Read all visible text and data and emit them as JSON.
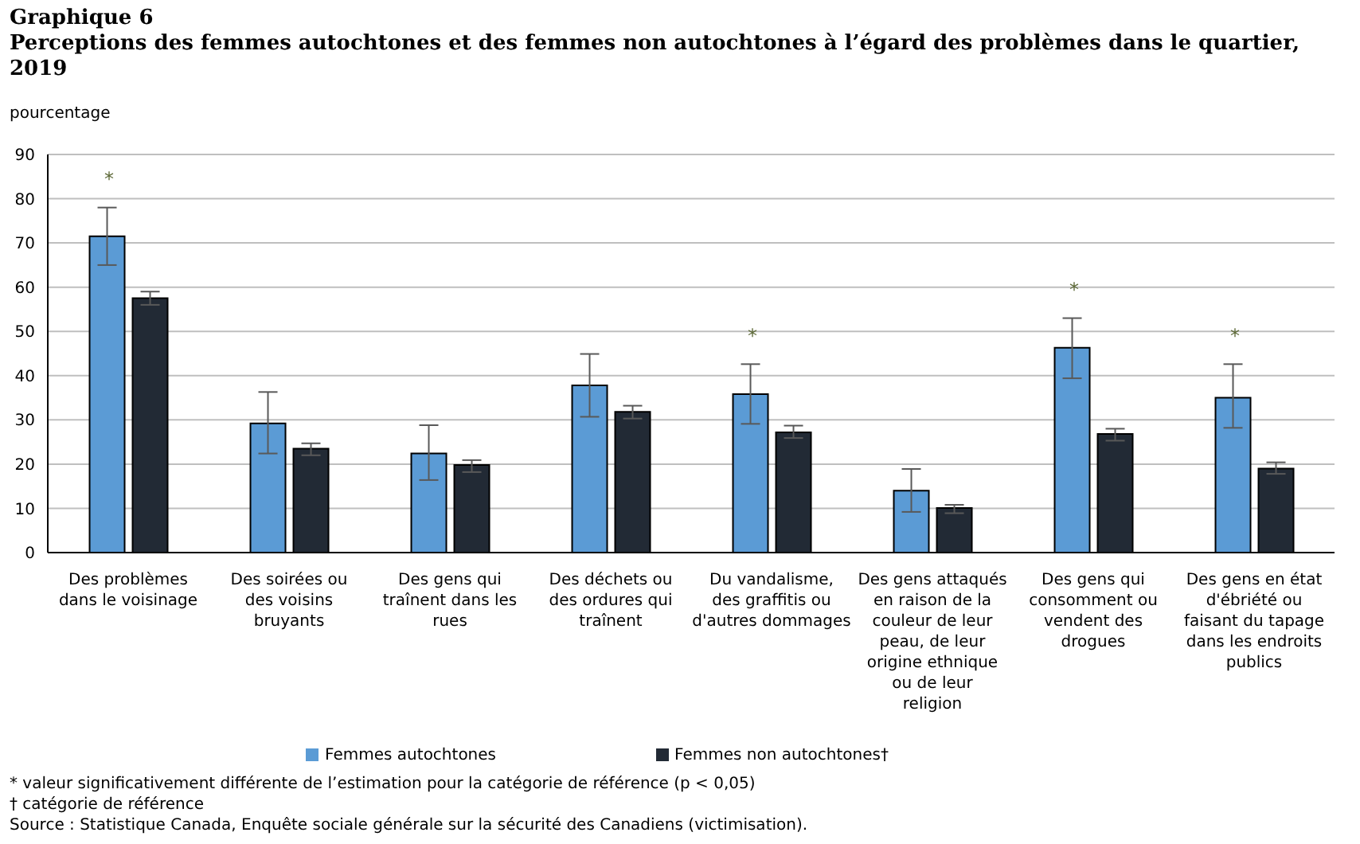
{
  "chart_data": {
    "type": "bar",
    "title": "Graphique 6",
    "subtitle": "Perceptions des femmes autochtones et des femmes non autochtones à l’égard des problèmes dans le quartier, 2019",
    "ylabel": "pourcentage",
    "categories": [
      "Des problèmes dans le voisinage",
      "Des soirées ou des voisins bruyants",
      "Des gens qui traînent dans les rues",
      "Des déchets ou des ordures qui traînent",
      "Du vandalisme, des graffitis ou d'autres dommages",
      "Des gens attaqués en raison de la couleur de leur peau, de leur origine ethnique ou de leur religion",
      "Des gens qui consomment ou vendent des drogues",
      "Des gens en état d'ébriété ou faisant du tapage dans les endroits publics"
    ],
    "series": [
      {
        "name": "Femmes autochtones",
        "color": "#5b9bd5",
        "values": [
          71.5,
          29.2,
          22.4,
          37.8,
          35.8,
          14.0,
          46.3,
          35.0
        ],
        "errors": [
          [
            65.0,
            78.0
          ],
          [
            22.4,
            36.3
          ],
          [
            16.4,
            28.8
          ],
          [
            30.7,
            44.9
          ],
          [
            29.1,
            42.6
          ],
          [
            9.2,
            18.9
          ],
          [
            39.4,
            53.0
          ],
          [
            28.2,
            42.6
          ]
        ]
      },
      {
        "name": "Femmes non autochtones†",
        "color": "#222a35",
        "values": [
          57.5,
          23.5,
          19.8,
          31.8,
          27.2,
          10.1,
          26.8,
          19.0
        ],
        "errors": [
          [
            56.0,
            59.0
          ],
          [
            22.0,
            24.7
          ],
          [
            18.2,
            20.9
          ],
          [
            30.3,
            33.2
          ],
          [
            25.9,
            28.7
          ],
          [
            8.9,
            10.8
          ],
          [
            25.3,
            28.0
          ],
          [
            17.8,
            20.4
          ]
        ]
      }
    ],
    "ylim": [
      0,
      90
    ],
    "yticks": [
      0,
      10,
      20,
      30,
      40,
      50,
      60,
      70,
      80,
      90
    ],
    "grid": "y",
    "legend": "bottom",
    "annotations": [
      {
        "text": "*",
        "x": "Des problèmes dans le voisinage",
        "y": 71.5
      },
      {
        "text": "*",
        "x": "Du vandalisme, des graffitis ou d'autres dommages",
        "y": 35.8
      },
      {
        "text": "*",
        "x": "Des gens qui consomment ou vendent des drogues",
        "y": 46.3
      },
      {
        "text": "*",
        "x": "Des gens en état d'ébriété ou faisant du tapage dans les endroits publics",
        "y": 35.0
      },
      "* valeur significativement différente de l’estimation pour la catégorie de référence (p < 0,05)",
      "† catégorie de référence",
      "Source : Statistique Canada, Enquête sociale générale sur la sécurité des Canadiens (victimisation)."
    ]
  }
}
